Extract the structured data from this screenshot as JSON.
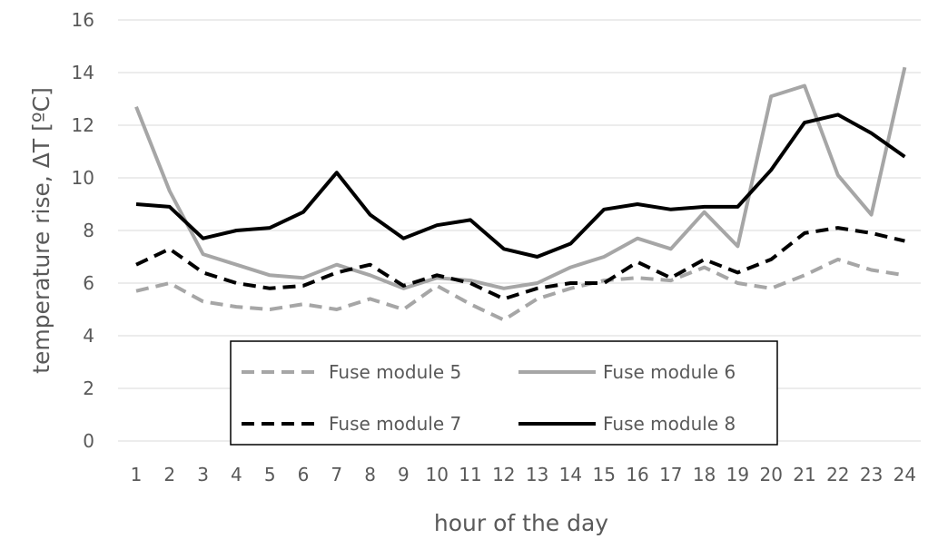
{
  "chart_data": {
    "type": "line",
    "title": "",
    "xlabel": "hour of the day",
    "ylabel": "temperature rise, ΔT [ºC]",
    "x": [
      1,
      2,
      3,
      4,
      5,
      6,
      7,
      8,
      9,
      10,
      11,
      12,
      13,
      14,
      15,
      16,
      17,
      18,
      19,
      20,
      21,
      22,
      23,
      24
    ],
    "x_tick_labels": [
      "1",
      "2",
      "3",
      "4",
      "5",
      "6",
      "7",
      "8",
      "9",
      "10",
      "11",
      "12",
      "13",
      "14",
      "15",
      "16",
      "17",
      "18",
      "19",
      "20",
      "21",
      "22",
      "23",
      "24"
    ],
    "ylim": [
      0,
      16
    ],
    "y_ticks": [
      0,
      2,
      4,
      6,
      8,
      10,
      12,
      14,
      16
    ],
    "y_tick_labels": [
      "0",
      "2",
      "4",
      "6",
      "8",
      "10",
      "12",
      "14",
      "16"
    ],
    "grid": true,
    "legend_placement": "bottom-center",
    "series": [
      {
        "name": "Fuse module 5",
        "color": "#a6a6a6",
        "dash": "dashed",
        "values": [
          5.7,
          6.0,
          5.3,
          5.1,
          5.0,
          5.2,
          5.0,
          5.4,
          5.0,
          5.9,
          5.2,
          4.6,
          5.4,
          5.8,
          6.1,
          6.2,
          6.1,
          6.6,
          6.0,
          5.8,
          6.3,
          6.9,
          6.5,
          6.3
        ]
      },
      {
        "name": "Fuse module 6",
        "color": "#a6a6a6",
        "dash": "solid",
        "values": [
          12.7,
          9.5,
          7.1,
          6.7,
          6.3,
          6.2,
          6.7,
          6.3,
          5.8,
          6.2,
          6.1,
          5.8,
          6.0,
          6.6,
          7.0,
          7.7,
          7.3,
          8.7,
          7.4,
          13.1,
          13.5,
          10.1,
          8.6,
          14.2
        ]
      },
      {
        "name": "Fuse module 7",
        "color": "#000000",
        "dash": "dashed",
        "values": [
          6.7,
          7.3,
          6.4,
          6.0,
          5.8,
          5.9,
          6.4,
          6.7,
          5.9,
          6.3,
          6.0,
          5.4,
          5.8,
          6.0,
          6.0,
          6.8,
          6.2,
          6.9,
          6.4,
          6.9,
          7.9,
          8.1,
          7.9,
          7.6
        ]
      },
      {
        "name": "Fuse module 8",
        "color": "#000000",
        "dash": "solid",
        "values": [
          9.0,
          8.9,
          7.7,
          8.0,
          8.1,
          8.7,
          10.2,
          8.6,
          7.7,
          8.2,
          8.4,
          7.3,
          7.0,
          7.5,
          8.8,
          9.0,
          8.8,
          8.9,
          8.9,
          10.3,
          12.1,
          12.4,
          11.7,
          10.8
        ]
      }
    ]
  }
}
